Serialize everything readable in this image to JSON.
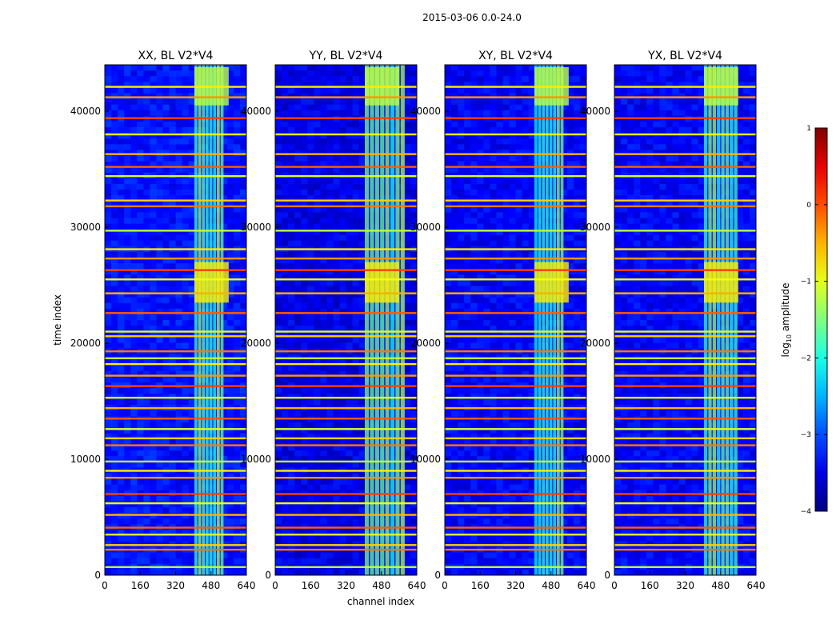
{
  "chart_data": {
    "type": "heatmap",
    "suptitle": "2015-03-06 0.0-24.0",
    "xlabel": "channel index",
    "ylabel": "time index",
    "xlim": [
      0,
      640
    ],
    "ylim": [
      0,
      44000
    ],
    "xticks": [
      0,
      160,
      320,
      480,
      640
    ],
    "yticks": [
      0,
      10000,
      20000,
      30000,
      40000
    ],
    "colorbar": {
      "label": "log10 amplitude",
      "label_main": "log",
      "label_sub": "10",
      "label_rest": " amplitude",
      "range": [
        -4,
        1
      ],
      "ticks": [
        -4,
        -3,
        -2,
        -1,
        0,
        1
      ],
      "tick_labels": [
        "−4",
        "−3",
        "−2",
        "−1",
        "0",
        "1"
      ],
      "colormap": "jet"
    },
    "panels": [
      {
        "title": "XX, BL V2*V4",
        "base": -3.3,
        "rfi_band": [
          405,
          540
        ],
        "rfi_level": -1.6
      },
      {
        "title": "YY, BL V2*V4",
        "base": -3.5,
        "rfi_band": [
          405,
          590
        ],
        "rfi_level": -1.6
      },
      {
        "title": "XY, BL V2*V4",
        "base": -3.4,
        "rfi_band": [
          405,
          540
        ],
        "rfi_level": -1.7
      },
      {
        "title": "YX, BL V2*V4",
        "base": -3.4,
        "rfi_band": [
          405,
          560
        ],
        "rfi_level": -1.7
      }
    ],
    "strong_rfi_times": [
      700,
      2200,
      2600,
      3500,
      4100,
      5200,
      6200,
      7000,
      8400,
      9000,
      9800,
      11200,
      11800,
      12600,
      13500,
      14400,
      15300,
      16300,
      17200,
      18200,
      18700,
      19300,
      20600,
      21000,
      22600,
      24300,
      25500,
      26300,
      27300,
      28100,
      29700,
      31800,
      32300,
      34400,
      35200,
      36300,
      38000,
      39400,
      41200,
      42100
    ],
    "broadband_bursts": [
      {
        "time": [
          23500,
          27000
        ],
        "channels": [
          405,
          560
        ],
        "level": -0.8
      },
      {
        "time": [
          40500,
          43800
        ],
        "channels": [
          405,
          560
        ],
        "level": -1.2
      }
    ]
  }
}
